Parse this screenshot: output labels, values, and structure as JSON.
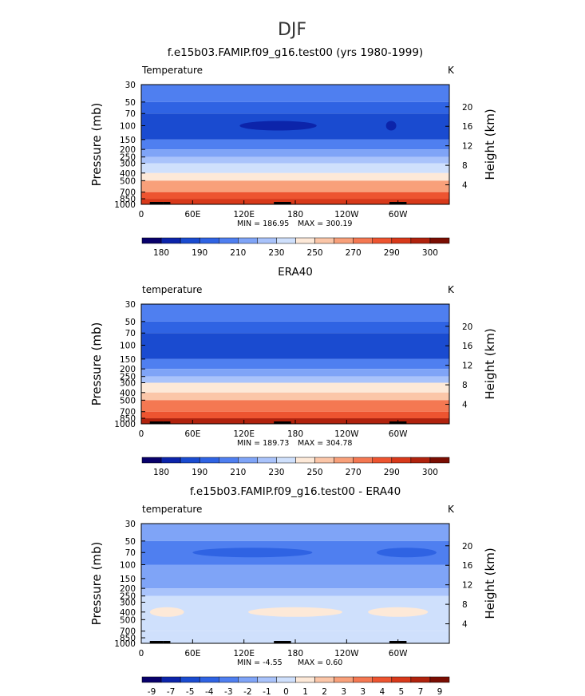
{
  "figure_title": "DJF",
  "colors": {
    "temp_levels": [
      "#08006b",
      "#0c24aa",
      "#1a4bd0",
      "#2f63e3",
      "#4f7ff0",
      "#7fa4f7",
      "#a9c3fb",
      "#cfe0fc",
      "#fde9d8",
      "#fbc6a8",
      "#f8a07a",
      "#f47852",
      "#ed5430",
      "#d8391a",
      "#b0220d",
      "#7a0d02"
    ],
    "diff_levels": [
      "#08006b",
      "#0c24aa",
      "#1a4bd0",
      "#2f63e3",
      "#4f7ff0",
      "#7fa4f7",
      "#a9c3fb",
      "#cfe0fc",
      "#fde9d8",
      "#fbc6a8",
      "#f8a07a",
      "#f47852",
      "#ed5430",
      "#d8391a",
      "#b0220d",
      "#7a0d02"
    ]
  },
  "chart_data": [
    {
      "type": "heatmap",
      "title": "f.e15b03.FAMIP.f09_g16.test00 (yrs 1980-1999)",
      "variable_label": "Temperature",
      "units": "K",
      "x_ticks": [
        "0",
        "60E",
        "120E",
        "180",
        "120W",
        "60W"
      ],
      "y_label": "Pressure (mb)",
      "y_ticks": [
        "30",
        "50",
        "70",
        "100",
        "150",
        "200",
        "250",
        "300",
        "400",
        "500",
        "700",
        "850",
        "1000"
      ],
      "y2_label": "Height (km)",
      "y2_ticks": [
        "20",
        "16",
        "12",
        "8",
        "4"
      ],
      "min_text": "MIN = 186.95",
      "max_text": "MAX = 300.19",
      "colorbar_ticks": [
        "180",
        "190",
        "210",
        "230",
        "250",
        "270",
        "290",
        "300"
      ],
      "bands": [
        {
          "from": "30",
          "to": "50",
          "level": 4
        },
        {
          "from": "50",
          "to": "70",
          "level": 3
        },
        {
          "from": "70",
          "to": "150",
          "level": 2
        },
        {
          "from": "150",
          "to": "200",
          "level": 4
        },
        {
          "from": "200",
          "to": "250",
          "level": 5
        },
        {
          "from": "250",
          "to": "300",
          "level": 6
        },
        {
          "from": "300",
          "to": "400",
          "level": 7
        },
        {
          "from": "400",
          "to": "500",
          "level": 8
        },
        {
          "from": "500",
          "to": "700",
          "level": 10
        },
        {
          "from": "700",
          "to": "850",
          "level": 12
        },
        {
          "from": "850",
          "to": "1000",
          "level": 13
        }
      ],
      "features": [
        {
          "lon_center": 160,
          "lon_width": 90,
          "pressure": "100",
          "level": 1
        },
        {
          "lon_center": 292,
          "lon_width": 12,
          "pressure": "100",
          "level": 1
        }
      ]
    },
    {
      "type": "heatmap",
      "title": "ERA40",
      "variable_label": "temperature",
      "units": "K",
      "x_ticks": [
        "0",
        "60E",
        "120E",
        "180",
        "120W",
        "60W"
      ],
      "y_label": "Pressure (mb)",
      "y_ticks": [
        "30",
        "50",
        "70",
        "100",
        "150",
        "200",
        "250",
        "300",
        "400",
        "500",
        "700",
        "850",
        "1000"
      ],
      "y2_label": "Height (km)",
      "y2_ticks": [
        "20",
        "16",
        "12",
        "8",
        "4"
      ],
      "min_text": "MIN = 189.73",
      "max_text": "MAX = 304.78",
      "colorbar_ticks": [
        "180",
        "190",
        "210",
        "230",
        "250",
        "270",
        "290",
        "300"
      ],
      "bands": [
        {
          "from": "30",
          "to": "50",
          "level": 4
        },
        {
          "from": "50",
          "to": "70",
          "level": 3
        },
        {
          "from": "70",
          "to": "150",
          "level": 2
        },
        {
          "from": "150",
          "to": "200",
          "level": 4
        },
        {
          "from": "200",
          "to": "250",
          "level": 5
        },
        {
          "from": "250",
          "to": "300",
          "level": 6
        },
        {
          "from": "300",
          "to": "400",
          "level": 8
        },
        {
          "from": "400",
          "to": "500",
          "level": 9
        },
        {
          "from": "500",
          "to": "700",
          "level": 11
        },
        {
          "from": "700",
          "to": "850",
          "level": 12
        },
        {
          "from": "850",
          "to": "1000",
          "level": 14
        }
      ],
      "features": []
    },
    {
      "type": "heatmap",
      "title": "f.e15b03.FAMIP.f09_g16.test00 - ERA40",
      "variable_label": "temperature",
      "units": "K",
      "x_ticks": [
        "0",
        "60E",
        "120E",
        "180",
        "120W",
        "60W"
      ],
      "y_label": "Pressure (mb)",
      "y_ticks": [
        "30",
        "50",
        "70",
        "100",
        "150",
        "200",
        "250",
        "300",
        "400",
        "500",
        "700",
        "850",
        "1000"
      ],
      "y2_label": "Height (km)",
      "y2_ticks": [
        "20",
        "16",
        "12",
        "8",
        "4"
      ],
      "min_text": "MIN =   -4.55",
      "max_text": "MAX =    0.60",
      "colorbar_ticks": [
        "-9",
        "-7",
        "-5",
        "-4",
        "-3",
        "-2",
        "-1",
        "0",
        "1",
        "2",
        "3",
        "3",
        "4",
        "5",
        "7",
        "9"
      ],
      "bands": [
        {
          "from": "30",
          "to": "50",
          "level": 5
        },
        {
          "from": "50",
          "to": "100",
          "level": 4
        },
        {
          "from": "100",
          "to": "200",
          "level": 5
        },
        {
          "from": "200",
          "to": "250",
          "level": 6
        },
        {
          "from": "250",
          "to": "700",
          "level": 7
        },
        {
          "from": "700",
          "to": "1000",
          "level": 7
        }
      ],
      "features": [
        {
          "lon_center": 130,
          "lon_width": 140,
          "pressure": "70",
          "level": 3
        },
        {
          "lon_center": 310,
          "lon_width": 70,
          "pressure": "70",
          "level": 3
        },
        {
          "lon_center": 180,
          "lon_width": 110,
          "pressure": "400",
          "level": 8
        },
        {
          "lon_center": 30,
          "lon_width": 40,
          "pressure": "400",
          "level": 8
        },
        {
          "lon_center": 300,
          "lon_width": 70,
          "pressure": "400",
          "level": 8
        }
      ]
    }
  ]
}
